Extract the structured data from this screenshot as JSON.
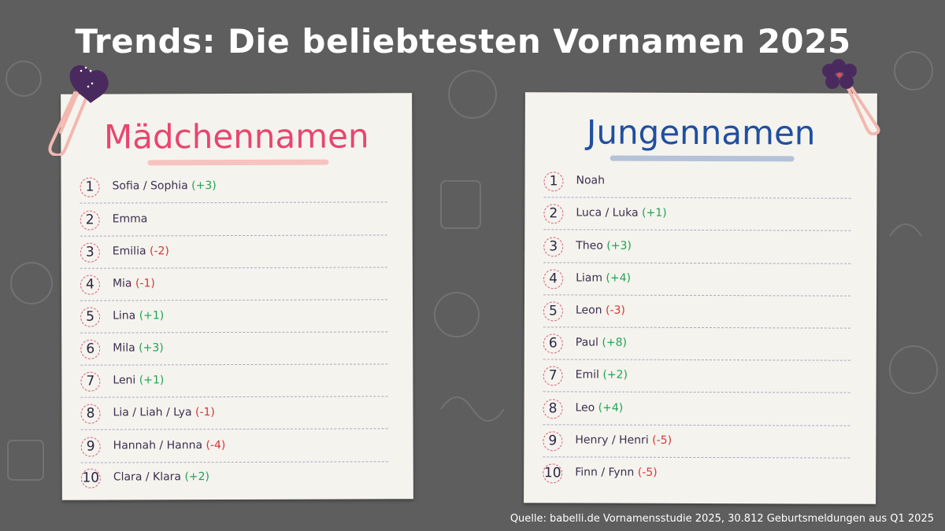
{
  "title": "Trends: Die beliebtesten Vornamen 2025",
  "colors": {
    "up": "#1fa453",
    "down": "#d93434",
    "girls_heading": "#e8466f",
    "boys_heading": "#1f4fa0",
    "background": "#5e5e5f"
  },
  "girls": {
    "heading": "Mädchennamen",
    "items": [
      {
        "rank": "1",
        "name": "Sofia / Sophia",
        "change": "(+3)"
      },
      {
        "rank": "2",
        "name": "Emma",
        "change": ""
      },
      {
        "rank": "3",
        "name": "Emilia",
        "change": "(-2)"
      },
      {
        "rank": "4",
        "name": "Mia",
        "change": "(-1)"
      },
      {
        "rank": "5",
        "name": "Lina",
        "change": "(+1)"
      },
      {
        "rank": "6",
        "name": "Mila",
        "change": "(+3)"
      },
      {
        "rank": "7",
        "name": "Leni",
        "change": "(+1)"
      },
      {
        "rank": "8",
        "name": "Lia / Liah / Lya",
        "change": "(-1)"
      },
      {
        "rank": "9",
        "name": "Hannah / Hanna",
        "change": "(-4)"
      },
      {
        "rank": "10",
        "name": "Clara / Klara",
        "change": "(+2)"
      }
    ]
  },
  "boys": {
    "heading": "Jungennamen",
    "items": [
      {
        "rank": "1",
        "name": "Noah",
        "change": ""
      },
      {
        "rank": "2",
        "name": "Luca / Luka",
        "change": "(+1)"
      },
      {
        "rank": "3",
        "name": "Theo",
        "change": "(+3)"
      },
      {
        "rank": "4",
        "name": "Liam",
        "change": "(+4)"
      },
      {
        "rank": "5",
        "name": "Leon",
        "change": "(-3)"
      },
      {
        "rank": "6",
        "name": "Paul",
        "change": "(+8)"
      },
      {
        "rank": "7",
        "name": "Emil",
        "change": "(+2)"
      },
      {
        "rank": "8",
        "name": "Leo",
        "change": "(+4)"
      },
      {
        "rank": "9",
        "name": "Henry / Henri",
        "change": "(-5)"
      },
      {
        "rank": "10",
        "name": "Finn / Fynn",
        "change": "(-5)"
      }
    ]
  },
  "source": "Quelle: babelli.de Vornamensstudie 2025, 30.812 Geburtsmeldungen aus Q1 2025"
}
